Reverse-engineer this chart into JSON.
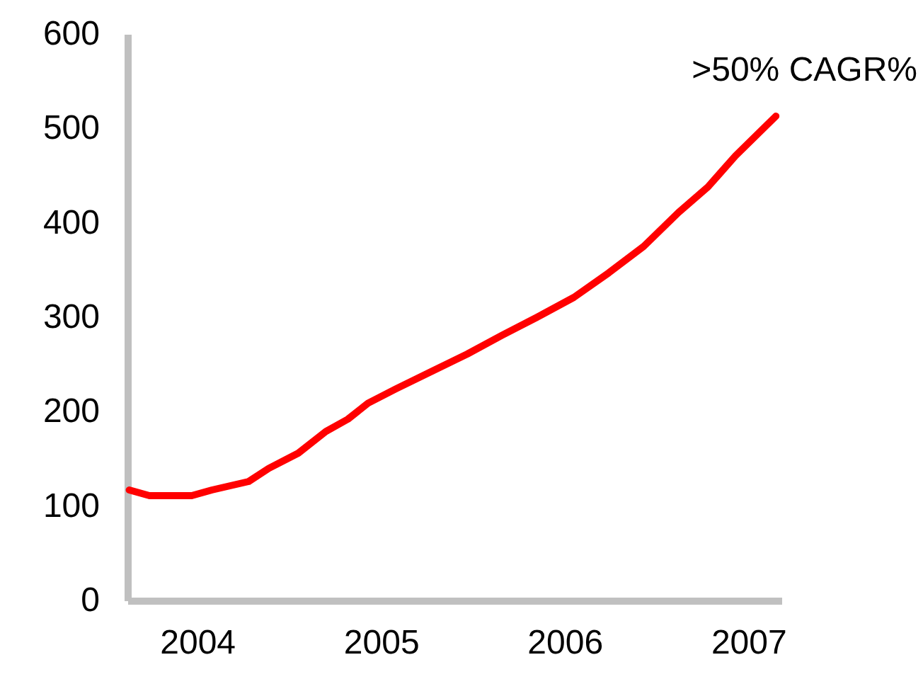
{
  "chart_data": {
    "type": "line",
    "annotations": [
      ">50% CAGR%"
    ],
    "x": [
      2003.63,
      2003.74,
      2003.97,
      2004.08,
      2004.28,
      2004.39,
      2004.55,
      2004.7,
      2004.82,
      2004.93,
      2005.08,
      2005.28,
      2005.47,
      2005.66,
      2005.85,
      2006.05,
      2006.24,
      2006.43,
      2006.62,
      2006.78,
      2006.93,
      2007.15
    ],
    "series": [
      {
        "color": "#ff0000",
        "values": [
          117,
          111,
          111,
          117,
          126,
          140,
          156,
          179,
          192,
          209,
          224,
          243,
          261,
          281,
          300,
          321,
          347,
          375,
          411,
          438,
          471,
          513
        ]
      }
    ],
    "xlim": [
      2003.62,
      2007.18
    ],
    "xticks": [
      2004,
      2005,
      2006,
      2007
    ],
    "ylim": [
      0,
      600
    ],
    "yticks": [
      0,
      100,
      200,
      300,
      400,
      500,
      600
    ],
    "grid": false,
    "marker": "none",
    "line_style": "solid"
  }
}
